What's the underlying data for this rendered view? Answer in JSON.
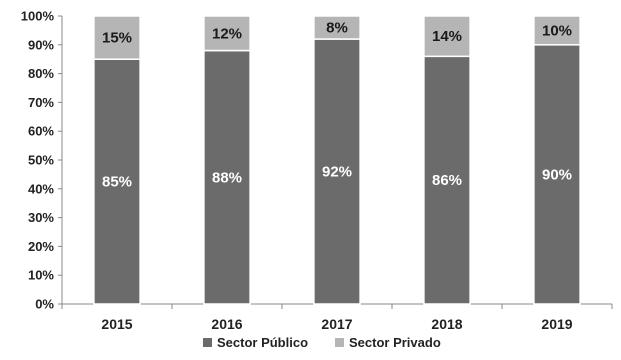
{
  "chart_data": {
    "type": "bar",
    "stacked": true,
    "categories": [
      "2015",
      "2016",
      "2017",
      "2018",
      "2019"
    ],
    "series": [
      {
        "name": "Sector Público",
        "values": [
          85,
          88,
          92,
          86,
          90
        ],
        "labels": [
          "85%",
          "88%",
          "92%",
          "86%",
          "90%"
        ],
        "color": "#6b6b6b",
        "label_color": "#ffffff"
      },
      {
        "name": "Sector Privado",
        "values": [
          15,
          12,
          8,
          14,
          10
        ],
        "labels": [
          "15%",
          "12%",
          "8%",
          "14%",
          "10%"
        ],
        "color": "#b5b5b5",
        "label_color": "#1a1a1a"
      }
    ],
    "title": "",
    "xlabel": "",
    "ylabel": "",
    "ylim": [
      0,
      100
    ],
    "y_ticks": [
      "0%",
      "10%",
      "20%",
      "30%",
      "40%",
      "50%",
      "60%",
      "70%",
      "80%",
      "90%",
      "100%"
    ],
    "grid": false,
    "legend_position": "bottom"
  }
}
